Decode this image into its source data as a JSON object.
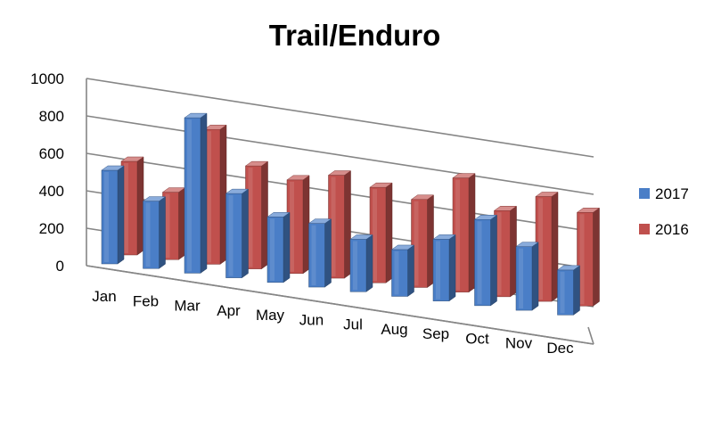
{
  "chart_data": {
    "type": "bar",
    "title": "Trail/Enduro",
    "categories": [
      "Jan",
      "Feb",
      "Mar",
      "Apr",
      "May",
      "Jun",
      "Jul",
      "Aug",
      "Sep",
      "Oct",
      "Nov",
      "Dec"
    ],
    "series": [
      {
        "name": "2017",
        "color": "#4A7EC7",
        "values": [
          500,
          360,
          830,
          450,
          350,
          340,
          280,
          250,
          330,
          460,
          340,
          240
        ]
      },
      {
        "name": "2016",
        "color": "#C0504D",
        "values": [
          500,
          360,
          720,
          550,
          500,
          550,
          510,
          470,
          610,
          460,
          560,
          500
        ]
      }
    ],
    "ylim": [
      0,
      1000
    ],
    "yticks": [
      "0",
      "200",
      "400",
      "600",
      "800",
      "1000"
    ],
    "grid": true,
    "legend": "right",
    "style": "3d-clustered-column"
  }
}
